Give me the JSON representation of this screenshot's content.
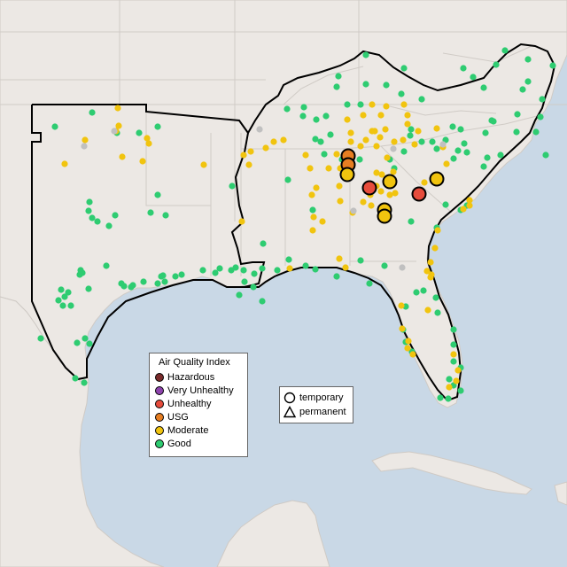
{
  "legend": {
    "title": "Air Quality Index",
    "items": [
      {
        "label": "Hazardous",
        "color": "#7a2b2b"
      },
      {
        "label": "Very Unhealthy",
        "color": "#8e44ad"
      },
      {
        "label": "Unhealthy",
        "color": "#e74c3c"
      },
      {
        "label": "USG",
        "color": "#e67e22"
      },
      {
        "label": "Moderate",
        "color": "#f1c40f"
      },
      {
        "label": "Good",
        "color": "#2ecc71"
      }
    ]
  },
  "type_legend": {
    "items": [
      {
        "label": "temporary",
        "icon": "circle-icon"
      },
      {
        "label": "permanent",
        "icon": "triangle-icon"
      }
    ]
  },
  "colors": {
    "water": "#c9d8e6",
    "land": "#ece8e4",
    "no_data": "#c0c0c0"
  }
}
